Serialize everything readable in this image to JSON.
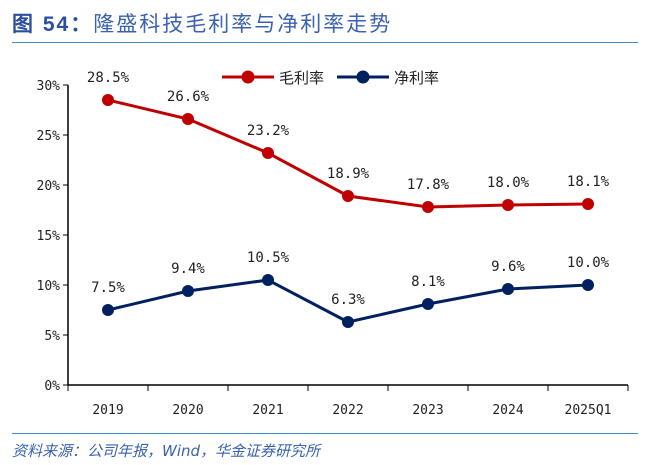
{
  "title": {
    "prefix": "图 54：",
    "text": "隆盛科技毛利率与净利率走势"
  },
  "source": "资料来源：公司年报，Wind，华金证券研究所",
  "chart_data": {
    "type": "line",
    "categories": [
      "2019",
      "2020",
      "2021",
      "2022",
      "2023",
      "2024",
      "2025Q1"
    ],
    "ylim": [
      0,
      30
    ],
    "yticks": [
      "0%",
      "5%",
      "10%",
      "15%",
      "20%",
      "25%",
      "30%"
    ],
    "legend_position": "top-right",
    "grid": false,
    "series": [
      {
        "name": "毛利率",
        "color": "#c00000",
        "values": [
          28.5,
          26.6,
          23.2,
          18.9,
          17.8,
          18.0,
          18.1
        ],
        "labels": [
          "28.5%",
          "26.6%",
          "23.2%",
          "18.9%",
          "17.8%",
          "18.0%",
          "18.1%"
        ]
      },
      {
        "name": "净利率",
        "color": "#002060",
        "values": [
          7.5,
          9.4,
          10.5,
          6.3,
          8.1,
          9.6,
          10.0
        ],
        "labels": [
          "7.5%",
          "9.4%",
          "10.5%",
          "6.3%",
          "8.1%",
          "9.6%",
          "10.0%"
        ]
      }
    ]
  }
}
